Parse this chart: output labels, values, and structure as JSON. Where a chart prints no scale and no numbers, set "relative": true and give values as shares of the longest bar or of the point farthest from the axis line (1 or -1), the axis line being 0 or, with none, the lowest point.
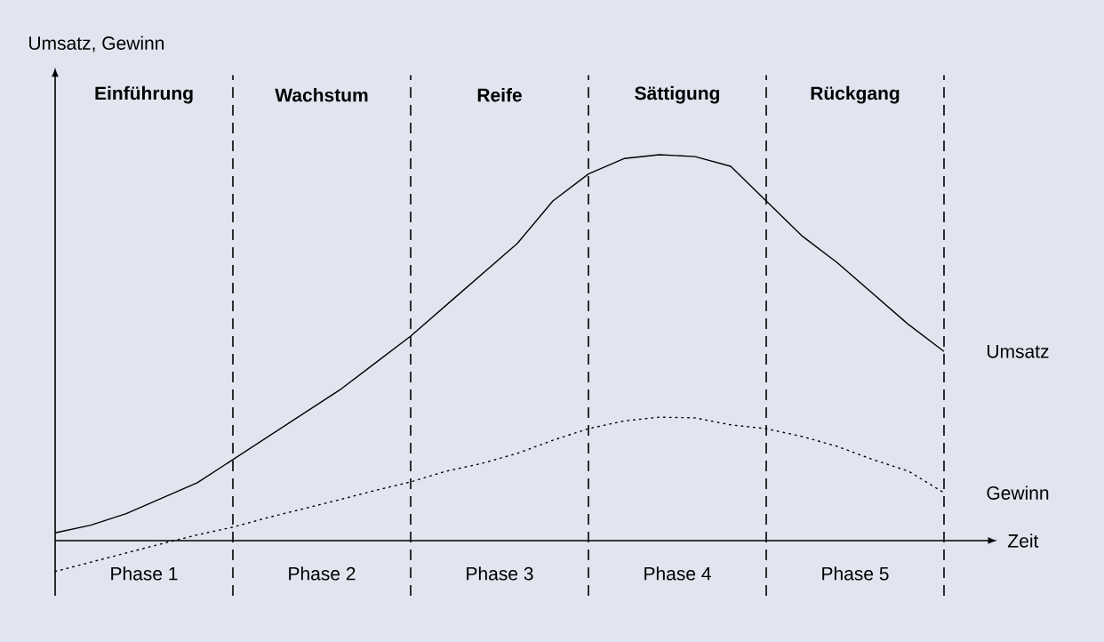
{
  "chart_data": {
    "type": "line",
    "relative": true,
    "xlabel": "Zeit",
    "legend": false,
    "grid": "x",
    "categories": [
      null,
      null,
      null,
      null,
      null,
      null,
      null,
      null,
      null,
      null,
      null,
      null,
      null,
      null,
      null,
      null,
      null,
      null,
      null,
      null,
      null,
      null,
      null,
      null,
      null,
      null
    ],
    "series": [
      {
        "name": "Umsatz",
        "color": "#000000",
        "line_style": "solid",
        "values": [
          0.02,
          0.04,
          0.07,
          0.11,
          0.15,
          0.21,
          0.27,
          0.33,
          0.39,
          0.46,
          0.53,
          0.61,
          0.69,
          0.77,
          0.88,
          0.95,
          0.99,
          1.0,
          0.995,
          0.97,
          0.88,
          0.79,
          0.72,
          0.64,
          0.56,
          0.49
        ]
      },
      {
        "name": "Gewinn",
        "color": "#000000",
        "line_style": "dotted",
        "values": [
          -0.08,
          -0.056,
          -0.032,
          -0.008,
          0.015,
          0.035,
          0.06,
          0.083,
          0.106,
          0.13,
          0.152,
          0.18,
          0.2,
          0.226,
          0.26,
          0.29,
          0.31,
          0.32,
          0.318,
          0.3,
          0.29,
          0.27,
          0.244,
          0.21,
          0.18,
          0.124
        ]
      }
    ],
    "annotations": [
      "Umsatz, Gewinn",
      "Einführung",
      "Wachstum",
      "Reife",
      "Sättigung",
      "Rückgang",
      "Phase 1",
      "Phase 2",
      "Phase 3",
      "Phase 4",
      "Phase 5"
    ]
  }
}
